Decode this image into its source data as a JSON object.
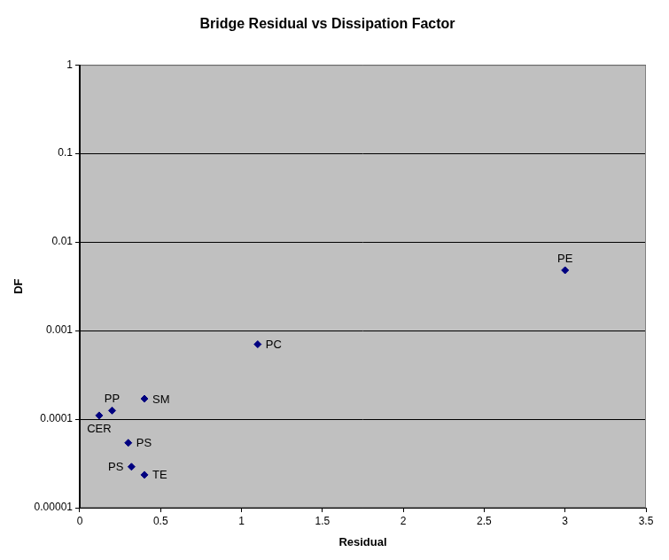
{
  "chart_data": {
    "type": "scatter",
    "title": "Bridge Residual vs Dissipation Factor",
    "x_label": "Residual",
    "y_label": "DF",
    "labels": [
      "CER",
      "PP",
      "SM",
      "PS",
      "PS",
      "TE",
      "PC",
      "PE"
    ],
    "x": [
      0.12,
      0.2,
      0.4,
      0.3,
      0.32,
      0.4,
      1.1,
      3.0
    ],
    "values": [
      0.00011,
      0.000125,
      0.00017,
      5.4e-05,
      2.9e-05,
      2.35e-05,
      0.0007,
      0.0048
    ],
    "color": "#000080",
    "marker": "diamond",
    "log": "y",
    "grid": true,
    "xlim": [
      0,
      3.5
    ],
    "xticks": [
      0,
      0.5,
      1,
      1.5,
      2,
      2.5,
      3,
      3.5
    ],
    "ylim": [
      1e-05,
      1
    ],
    "yticks": [
      1e-05,
      0.0001,
      0.001,
      0.01,
      0.1,
      1
    ]
  }
}
